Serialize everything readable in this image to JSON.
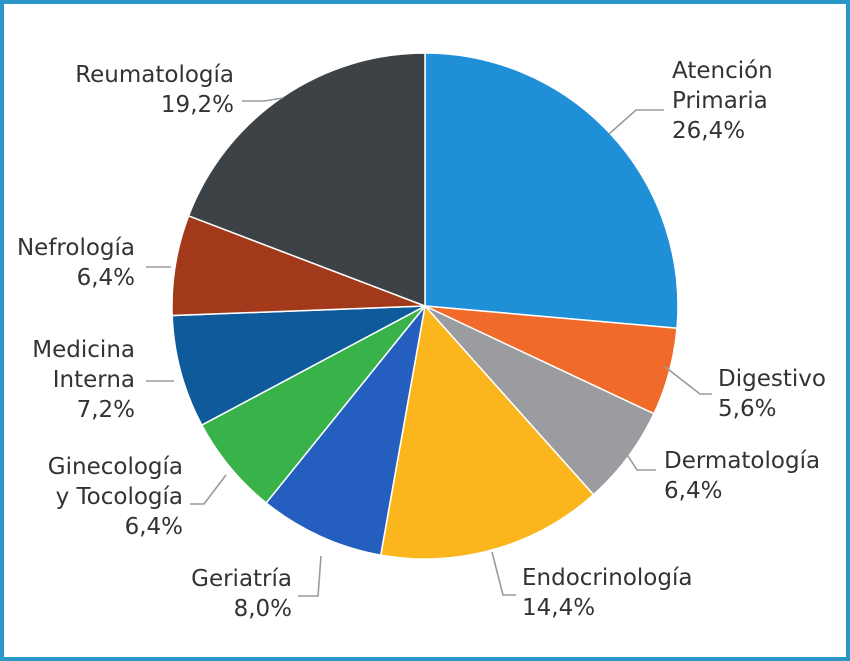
{
  "chart_data": {
    "type": "pie",
    "title": "",
    "slices": [
      {
        "label_lines": [
          "Atención",
          "Primaria"
        ],
        "pct_label": "26,4%",
        "value": 26.4,
        "color": "#1f8fd8"
      },
      {
        "label_lines": [
          "Digestivo"
        ],
        "pct_label": "5,6%",
        "value": 5.6,
        "color": "#f06a2a"
      },
      {
        "label_lines": [
          "Dermatología"
        ],
        "pct_label": "6,4%",
        "value": 6.4,
        "color": "#9a9c9f"
      },
      {
        "label_lines": [
          "Endocrinología"
        ],
        "pct_label": "14,4%",
        "value": 14.4,
        "color": "#fbb61d"
      },
      {
        "label_lines": [
          "Geriatría"
        ],
        "pct_label": "8,0%",
        "value": 8.0,
        "color": "#245fbf"
      },
      {
        "label_lines": [
          "Ginecología",
          "y Tocología"
        ],
        "pct_label": "6,4%",
        "value": 6.4,
        "color": "#39b24a"
      },
      {
        "label_lines": [
          "Medicina",
          "Interna"
        ],
        "pct_label": "7,2%",
        "value": 7.2,
        "color": "#0f5a9a"
      },
      {
        "label_lines": [
          "Nefrología"
        ],
        "pct_label": "6,4%",
        "value": 6.4,
        "color": "#a3391b"
      },
      {
        "label_lines": [
          "Reumatología"
        ],
        "pct_label": "19,2%",
        "value": 19.2,
        "color": "#3d4247"
      }
    ],
    "legend": "none",
    "labels": "outside-with-leader-lines"
  },
  "frame_color": "#2b97c9"
}
